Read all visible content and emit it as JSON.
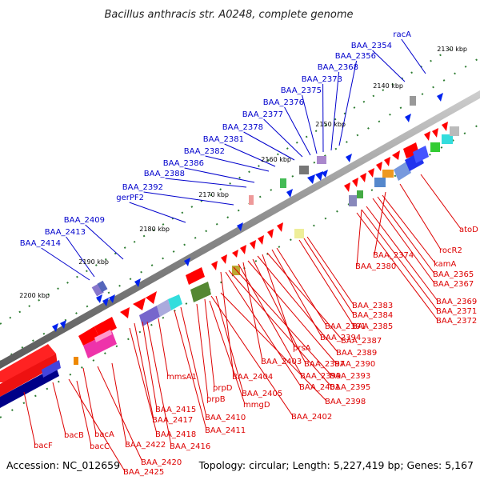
{
  "title": "Bacillus anthracis str. A0248, complete genome",
  "footer": {
    "accession": "Accession: NC_012659",
    "summary": "Topology: circular; Length: 5,227,419 bp; Genes: 5,167"
  },
  "colors": {
    "forward_label": "#0000cc",
    "reverse_label": "#dd0000",
    "backbone": "#888888",
    "tick": "#2e7d32"
  },
  "ticks": [
    "2130 kbp",
    "2140 kbp",
    "2150 kbp",
    "2160 kbp",
    "2170 kbp",
    "2180 kbp",
    "2190 kbp",
    "2200 kbp"
  ],
  "forward_genes": [
    "racA",
    "BAA_2354",
    "BAA_2356",
    "BAA_2368",
    "BAA_2373",
    "BAA_2375",
    "BAA_2376",
    "BAA_2377",
    "BAA_2378",
    "BAA_2381",
    "BAA_2382",
    "BAA_2386",
    "BAA_2388",
    "BAA_2392",
    "gerPF2",
    "BAA_2409",
    "BAA_2413",
    "BAA_2414"
  ],
  "reverse_genes": [
    "atoD",
    "rocR2",
    "BAA_2374",
    "kamA",
    "BAA_2365",
    "BAA_2367",
    "BAA_2380",
    "BAA_2369",
    "BAA_2371",
    "BAA_2372",
    "BAA_2383",
    "BAA_2384",
    "BAA_2385",
    "BAA_2391",
    "BAA_2394",
    "BAA_2387",
    "prsA",
    "BAA_2389",
    "BAA_2397",
    "BAA_2390",
    "BAA_2403",
    "BAA_2399",
    "BAA_2393",
    "mmsA1",
    "BAA_2404",
    "BAA_2401",
    "BAA_2395",
    "prpD",
    "BAA_2405",
    "BAA_2398",
    "prpB",
    "mmgD",
    "BAA_2415",
    "BAA_2402",
    "BAA_2417",
    "BAA_2410",
    "BAA_2418",
    "BAA_2411",
    "bacA",
    "BAA_2422",
    "BAA_2416",
    "bacB",
    "bacC",
    "bacF",
    "BAA_2420",
    "BAA_2425"
  ]
}
